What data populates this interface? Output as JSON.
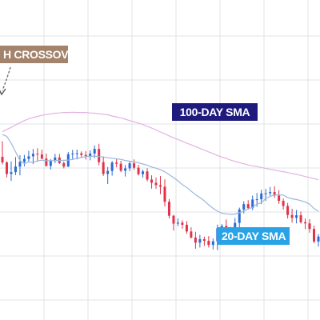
{
  "colors": {
    "background": "#ffffff",
    "grid": "#dfe3ea",
    "bullish": "#2a6bd4",
    "bearish": "#e0334a",
    "sma100": "#e2b3e2",
    "sma20": "#9db6dc",
    "label_crossover_bg": "#a3836b",
    "label_100_bg": "#1e1a7e",
    "label_20_bg": "#2aa3e6",
    "label_text": "#ffffff"
  },
  "annotations": {
    "crossover": "H CROSSOVER",
    "sma100": "100-DAY SMA",
    "sma20": "20-DAY SMA"
  },
  "chart_data": {
    "type": "candlestick",
    "grid": true,
    "ylim": [
      0,
      100
    ],
    "series": [
      {
        "name": "100-DAY SMA",
        "values": [
          70.8,
          71.8,
          72.7,
          73.7,
          74.7,
          75.6,
          76.4,
          76.9,
          77.4,
          77.9,
          78.2,
          78.5,
          78.8,
          78.9,
          79.1,
          79.1,
          79.2,
          79.1,
          79.1,
          79.1,
          78.9,
          78.8,
          78.6,
          78.3,
          78.1,
          77.6,
          77.2,
          76.8,
          76.2,
          75.6,
          75.1,
          74.5,
          73.9,
          73.1,
          72.4,
          71.6,
          70.7,
          69.9,
          69.0,
          68.2,
          67.5,
          66.7,
          65.9,
          65.2,
          64.4,
          63.6,
          62.9,
          62.1,
          61.4,
          60.6,
          59.9,
          59.3,
          58.6,
          58.0,
          57.5,
          57.0,
          56.5,
          56.1,
          55.8,
          55.4,
          55.0,
          54.6,
          54.3,
          53.9,
          53.6,
          53.2,
          52.8,
          52.4,
          52.0,
          51.5,
          51.1,
          50.6,
          50.1
        ]
      },
      {
        "name": "20-DAY SMA",
        "values": [
          69.6,
          68.8,
          65.9,
          62.1,
          58.5,
          57.0,
          57.8,
          57.6,
          58.2,
          58.6,
          58.3,
          58.3,
          58.4,
          58.4,
          58.5,
          58.6,
          58.9,
          59.3,
          59.7,
          60.1,
          60.2,
          60.3,
          60.1,
          59.9,
          59.6,
          59.4,
          59.1,
          58.9,
          58.4,
          58.1,
          57.8,
          57.4,
          56.9,
          56.4,
          55.6,
          55.1,
          54.4,
          53.5,
          52.3,
          51.0,
          49.7,
          48.0,
          46.8,
          45.2,
          43.7,
          42.4,
          41.0,
          39.3,
          37.8,
          36.6,
          35.7,
          35.4,
          35.2,
          35.3,
          35.9,
          36.6,
          37.6,
          38.2,
          39.6,
          40.2,
          42.0,
          42.9,
          43.6,
          43.6,
          43.5,
          42.4,
          41.9,
          41.6,
          41.1,
          40.5,
          39.6,
          37.7,
          36.5
        ]
      }
    ],
    "candles": [
      {
        "o": 60.0,
        "h": 66.7,
        "l": 56.7,
        "c": 57.6
      },
      {
        "o": 57.6,
        "h": 58.1,
        "l": 51.1,
        "c": 52.6
      },
      {
        "o": 52.6,
        "h": 58.0,
        "l": 49.6,
        "c": 53.4
      },
      {
        "o": 53.4,
        "h": 59.9,
        "l": 52.1,
        "c": 55.8
      },
      {
        "o": 55.8,
        "h": 60.7,
        "l": 52.0,
        "c": 57.8
      },
      {
        "o": 57.8,
        "h": 60.8,
        "l": 55.9,
        "c": 59.1
      },
      {
        "o": 59.1,
        "h": 62.6,
        "l": 57.6,
        "c": 60.2
      },
      {
        "o": 60.2,
        "h": 63.4,
        "l": 56.9,
        "c": 61.3
      },
      {
        "o": 61.3,
        "h": 63.7,
        "l": 57.9,
        "c": 61.0
      },
      {
        "o": 61.0,
        "h": 63.1,
        "l": 59.0,
        "c": 59.2
      },
      {
        "o": 59.2,
        "h": 61.4,
        "l": 55.8,
        "c": 56.1
      },
      {
        "o": 56.1,
        "h": 59.0,
        "l": 54.5,
        "c": 58.4
      },
      {
        "o": 58.4,
        "h": 61.3,
        "l": 57.3,
        "c": 59.7
      },
      {
        "o": 59.7,
        "h": 61.2,
        "l": 56.9,
        "c": 57.3
      },
      {
        "o": 57.3,
        "h": 58.0,
        "l": 55.0,
        "c": 55.8
      },
      {
        "o": 55.8,
        "h": 62.1,
        "l": 55.6,
        "c": 61.1
      },
      {
        "o": 61.1,
        "h": 63.0,
        "l": 58.7,
        "c": 61.4
      },
      {
        "o": 61.4,
        "h": 63.1,
        "l": 58.9,
        "c": 61.5
      },
      {
        "o": 61.5,
        "h": 62.3,
        "l": 59.8,
        "c": 60.8
      },
      {
        "o": 60.8,
        "h": 62.4,
        "l": 58.8,
        "c": 60.3
      },
      {
        "o": 60.3,
        "h": 62.8,
        "l": 58.5,
        "c": 61.4
      },
      {
        "o": 61.4,
        "h": 64.9,
        "l": 59.4,
        "c": 63.4
      },
      {
        "o": 63.4,
        "h": 65.6,
        "l": 56.4,
        "c": 57.7
      },
      {
        "o": 57.7,
        "h": 60.2,
        "l": 51.8,
        "c": 52.6
      },
      {
        "o": 52.6,
        "h": 55.6,
        "l": 48.3,
        "c": 53.9
      },
      {
        "o": 53.9,
        "h": 58.2,
        "l": 51.9,
        "c": 57.5
      },
      {
        "o": 57.5,
        "h": 59.1,
        "l": 55.5,
        "c": 57.0
      },
      {
        "o": 57.0,
        "h": 58.3,
        "l": 53.4,
        "c": 54.0
      },
      {
        "o": 54.0,
        "h": 56.5,
        "l": 51.5,
        "c": 55.0
      },
      {
        "o": 55.0,
        "h": 58.0,
        "l": 53.8,
        "c": 57.2
      },
      {
        "o": 57.2,
        "h": 58.9,
        "l": 54.4,
        "c": 55.3
      },
      {
        "o": 55.3,
        "h": 56.5,
        "l": 51.9,
        "c": 52.5
      },
      {
        "o": 52.5,
        "h": 54.5,
        "l": 51.0,
        "c": 53.7
      },
      {
        "o": 53.7,
        "h": 55.1,
        "l": 49.4,
        "c": 50.2
      },
      {
        "o": 50.2,
        "h": 52.0,
        "l": 46.3,
        "c": 48.8
      },
      {
        "o": 48.8,
        "h": 51.1,
        "l": 46.2,
        "c": 47.8
      },
      {
        "o": 47.8,
        "h": 51.7,
        "l": 43.9,
        "c": 47.1
      },
      {
        "o": 47.1,
        "h": 50.3,
        "l": 38.6,
        "c": 40.6
      },
      {
        "o": 40.6,
        "h": 41.8,
        "l": 33.4,
        "c": 34.6
      },
      {
        "o": 34.6,
        "h": 35.0,
        "l": 28.2,
        "c": 31.2
      },
      {
        "o": 31.2,
        "h": 33.4,
        "l": 30.1,
        "c": 31.6
      },
      {
        "o": 31.6,
        "h": 32.6,
        "l": 29.0,
        "c": 30.7
      },
      {
        "o": 30.7,
        "h": 32.3,
        "l": 26.8,
        "c": 27.8
      },
      {
        "o": 27.8,
        "h": 29.6,
        "l": 24.8,
        "c": 25.2
      },
      {
        "o": 25.2,
        "h": 27.7,
        "l": 20.4,
        "c": 23.0
      },
      {
        "o": 23.0,
        "h": 26.4,
        "l": 20.9,
        "c": 24.5
      },
      {
        "o": 24.5,
        "h": 25.6,
        "l": 21.6,
        "c": 23.8
      },
      {
        "o": 23.8,
        "h": 25.8,
        "l": 20.9,
        "c": 22.0
      },
      {
        "o": 22.0,
        "h": 24.8,
        "l": 20.1,
        "c": 23.6
      },
      {
        "o": 23.6,
        "h": 30.8,
        "l": 19.8,
        "c": 29.2
      },
      {
        "o": 29.2,
        "h": 31.0,
        "l": 26.7,
        "c": 30.2
      },
      {
        "o": 30.2,
        "h": 33.0,
        "l": 25.9,
        "c": 26.9
      },
      {
        "o": 26.9,
        "h": 29.8,
        "l": 26.0,
        "c": 28.9
      },
      {
        "o": 28.9,
        "h": 33.6,
        "l": 27.5,
        "c": 31.5
      },
      {
        "o": 31.5,
        "h": 38.1,
        "l": 28.8,
        "c": 37.3
      },
      {
        "o": 37.3,
        "h": 40.8,
        "l": 35.6,
        "c": 39.6
      },
      {
        "o": 39.6,
        "h": 41.3,
        "l": 37.2,
        "c": 37.9
      },
      {
        "o": 37.9,
        "h": 43.3,
        "l": 37.0,
        "c": 41.6
      },
      {
        "o": 41.6,
        "h": 44.4,
        "l": 38.5,
        "c": 41.7
      },
      {
        "o": 41.7,
        "h": 45.8,
        "l": 39.6,
        "c": 44.2
      },
      {
        "o": 44.2,
        "h": 46.2,
        "l": 41.0,
        "c": 44.3
      },
      {
        "o": 44.3,
        "h": 47.0,
        "l": 43.2,
        "c": 44.8
      },
      {
        "o": 44.8,
        "h": 47.3,
        "l": 42.3,
        "c": 43.3
      },
      {
        "o": 43.3,
        "h": 45.6,
        "l": 39.7,
        "c": 41.0
      },
      {
        "o": 41.0,
        "h": 42.0,
        "l": 37.2,
        "c": 38.8
      },
      {
        "o": 38.8,
        "h": 40.1,
        "l": 33.4,
        "c": 34.9
      },
      {
        "o": 34.9,
        "h": 37.6,
        "l": 31.6,
        "c": 33.7
      },
      {
        "o": 33.7,
        "h": 37.1,
        "l": 31.3,
        "c": 34.8
      },
      {
        "o": 34.8,
        "h": 36.4,
        "l": 31.2,
        "c": 31.8
      },
      {
        "o": 31.8,
        "h": 33.4,
        "l": 28.8,
        "c": 31.3
      },
      {
        "o": 31.3,
        "h": 33.1,
        "l": 27.3,
        "c": 28.9
      },
      {
        "o": 28.9,
        "h": 30.3,
        "l": 22.7,
        "c": 23.5
      },
      {
        "o": 23.5,
        "h": 26.7,
        "l": 21.3,
        "c": 25.6
      }
    ]
  }
}
